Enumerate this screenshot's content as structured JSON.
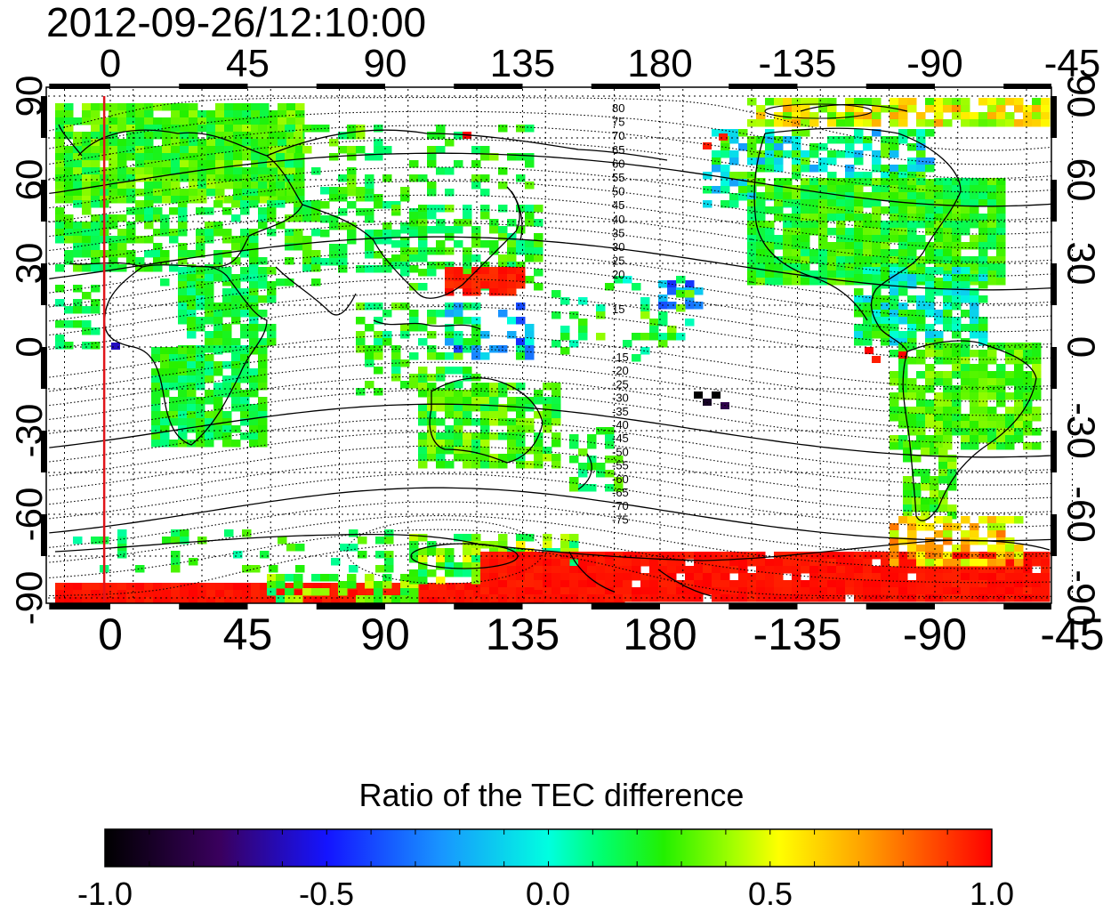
{
  "title": "2012-09-26/12:10:00",
  "map": {
    "projection": "equirectangular, central meridian 135E",
    "lon_ticks": [
      "0",
      "45",
      "90",
      "135",
      "180",
      "-135",
      "-90",
      "-45"
    ],
    "lat_ticks": [
      "90",
      "60",
      "30",
      "0",
      "-30",
      "-60",
      "-90"
    ],
    "contour_label_column_north": [
      "80",
      "75",
      "70",
      "65",
      "60",
      "55",
      "50",
      "45",
      "40",
      "35",
      "30",
      "25",
      "20",
      "15"
    ],
    "contour_label_column_south": [
      "-15",
      "-20",
      "-25",
      "-30",
      "-35",
      "-40",
      "-45",
      "-50",
      "-55",
      "-60",
      "-65",
      "-70",
      "-75"
    ],
    "marker_meridian_lon": -2,
    "marker_color": "#e0141a",
    "contour_note": "dotted isolines of magnetic latitude, solid lines at integer multiples of 30"
  },
  "colorbar": {
    "title": "Ratio of the TEC difference",
    "min": -1.0,
    "max": 1.0,
    "ticks": [
      "-1.0",
      "-0.5",
      "0.0",
      "0.5",
      "1.0"
    ],
    "colormap": "black-purple-blue-cyan-green-yellow-orange-red"
  }
}
